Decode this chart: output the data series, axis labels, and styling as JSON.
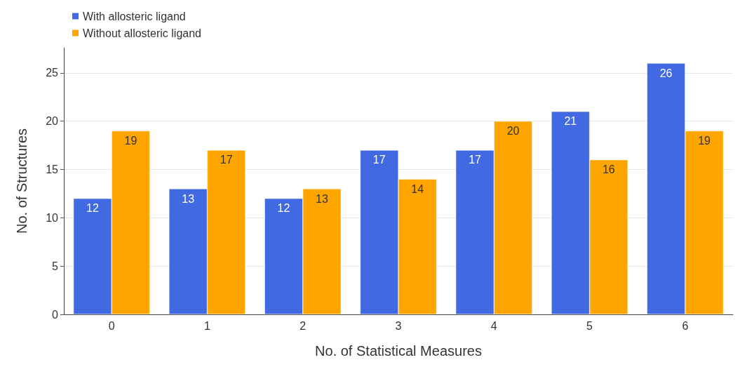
{
  "chart_data": {
    "type": "bar",
    "xlabel": "No. of Statistical Measures",
    "ylabel": "No. of Structures",
    "categories": [
      "0",
      "1",
      "2",
      "3",
      "4",
      "5",
      "6"
    ],
    "series": [
      {
        "name": "With allosteric ligand",
        "color": "#4169e1",
        "values": [
          12,
          13,
          12,
          17,
          17,
          21,
          26
        ]
      },
      {
        "name": "Without allosteric ligand",
        "color": "#ffa500",
        "values": [
          19,
          17,
          13,
          14,
          20,
          16,
          19
        ]
      }
    ],
    "ylim": [
      0,
      27.6
    ],
    "yticks": [
      0,
      5,
      10,
      15,
      20,
      25
    ],
    "grid": "y",
    "legend": "top left",
    "data_labels": true
  }
}
